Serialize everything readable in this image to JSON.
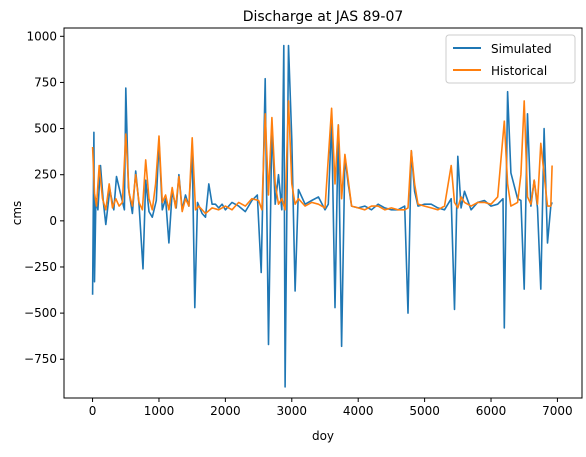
{
  "chart_data": {
    "type": "line",
    "title": "Discharge at JAS 89-07",
    "xlabel": "doy",
    "ylabel": "cms",
    "xlim": [
      -430,
      7370
    ],
    "ylim": [
      -960,
      1045
    ],
    "xticks": [
      0,
      1000,
      2000,
      3000,
      4000,
      5000,
      6000,
      7000
    ],
    "xtick_labels": [
      "0",
      "1000",
      "2000",
      "3000",
      "4000",
      "5000",
      "6000",
      "7000"
    ],
    "yticks": [
      -750,
      -500,
      -250,
      0,
      250,
      500,
      750,
      1000
    ],
    "ytick_labels": [
      "−750",
      "−500",
      "−250",
      "0",
      "250",
      "500",
      "750",
      "1000"
    ],
    "grid": false,
    "legend": "top-right",
    "series": [
      {
        "name": "Simulated",
        "color": "#1f77b4",
        "x": [
          0,
          20,
          30,
          50,
          80,
          120,
          160,
          200,
          260,
          320,
          360,
          420,
          480,
          500,
          540,
          600,
          650,
          700,
          760,
          800,
          850,
          900,
          960,
          1000,
          1050,
          1100,
          1150,
          1200,
          1260,
          1300,
          1350,
          1400,
          1450,
          1500,
          1540,
          1580,
          1650,
          1700,
          1750,
          1800,
          1850,
          1900,
          1950,
          2000,
          2100,
          2200,
          2300,
          2400,
          2480,
          2540,
          2600,
          2650,
          2700,
          2750,
          2800,
          2850,
          2880,
          2900,
          2950,
          3000,
          3050,
          3100,
          3200,
          3300,
          3400,
          3500,
          3550,
          3600,
          3650,
          3700,
          3750,
          3800,
          3850,
          3900,
          4000,
          4100,
          4200,
          4300,
          4400,
          4500,
          4600,
          4700,
          4750,
          4800,
          4850,
          4900,
          5000,
          5100,
          5200,
          5300,
          5400,
          5450,
          5500,
          5550,
          5600,
          5700,
          5800,
          5900,
          6000,
          6100,
          6180,
          6200,
          6250,
          6300,
          6400,
          6450,
          6500,
          6550,
          6600,
          6650,
          6700,
          6750,
          6800,
          6850,
          6900,
          6920
        ],
        "values": [
          -400,
          480,
          -330,
          120,
          60,
          300,
          110,
          -20,
          170,
          60,
          240,
          150,
          60,
          720,
          180,
          40,
          270,
          90,
          -260,
          220,
          50,
          20,
          110,
          430,
          60,
          120,
          -120,
          160,
          70,
          250,
          60,
          140,
          80,
          380,
          -470,
          100,
          40,
          20,
          200,
          90,
          90,
          70,
          90,
          60,
          100,
          80,
          50,
          110,
          140,
          -280,
          770,
          -670,
          520,
          90,
          250,
          60,
          950,
          -900,
          950,
          440,
          -380,
          170,
          90,
          110,
          130,
          60,
          90,
          550,
          -470,
          520,
          -680,
          350,
          200,
          80,
          70,
          80,
          60,
          90,
          70,
          60,
          60,
          80,
          -500,
          380,
          160,
          80,
          90,
          90,
          70,
          60,
          120,
          -480,
          350,
          70,
          160,
          60,
          100,
          110,
          80,
          90,
          120,
          -580,
          700,
          260,
          120,
          110,
          -370,
          580,
          80,
          220,
          70,
          -370,
          500,
          -120,
          80,
          100
        ]
      },
      {
        "name": "Historical",
        "color": "#ff7f0e",
        "x": [
          0,
          30,
          60,
          100,
          150,
          200,
          250,
          300,
          350,
          400,
          450,
          500,
          550,
          600,
          650,
          700,
          750,
          800,
          850,
          900,
          950,
          1000,
          1050,
          1100,
          1150,
          1200,
          1250,
          1300,
          1350,
          1400,
          1450,
          1500,
          1550,
          1600,
          1700,
          1800,
          1900,
          2000,
          2100,
          2200,
          2300,
          2400,
          2500,
          2550,
          2600,
          2650,
          2700,
          2750,
          2800,
          2850,
          2900,
          2950,
          3000,
          3050,
          3100,
          3200,
          3300,
          3400,
          3500,
          3600,
          3650,
          3700,
          3750,
          3800,
          3900,
          4000,
          4100,
          4200,
          4300,
          4400,
          4500,
          4600,
          4700,
          4750,
          4800,
          4850,
          4900,
          5000,
          5100,
          5200,
          5300,
          5400,
          5450,
          5500,
          5550,
          5600,
          5700,
          5800,
          5900,
          6000,
          6100,
          6200,
          6250,
          6300,
          6400,
          6450,
          6500,
          6550,
          6600,
          6650,
          6700,
          6750,
          6800,
          6850,
          6900,
          6920
        ],
        "values": [
          400,
          150,
          80,
          300,
          120,
          60,
          200,
          70,
          120,
          80,
          100,
          470,
          150,
          80,
          250,
          100,
          60,
          330,
          120,
          60,
          200,
          460,
          100,
          140,
          60,
          180,
          70,
          240,
          50,
          120,
          80,
          450,
          60,
          80,
          40,
          70,
          60,
          80,
          60,
          100,
          80,
          120,
          110,
          60,
          580,
          140,
          560,
          200,
          90,
          120,
          60,
          650,
          200,
          90,
          120,
          80,
          100,
          90,
          70,
          610,
          200,
          520,
          120,
          360,
          80,
          70,
          60,
          80,
          80,
          60,
          70,
          60,
          60,
          70,
          380,
          200,
          90,
          80,
          70,
          60,
          80,
          300,
          100,
          70,
          130,
          100,
          80,
          100,
          100,
          90,
          130,
          540,
          200,
          80,
          100,
          250,
          650,
          130,
          90,
          220,
          90,
          420,
          250,
          80,
          80,
          300
        ]
      }
    ]
  }
}
